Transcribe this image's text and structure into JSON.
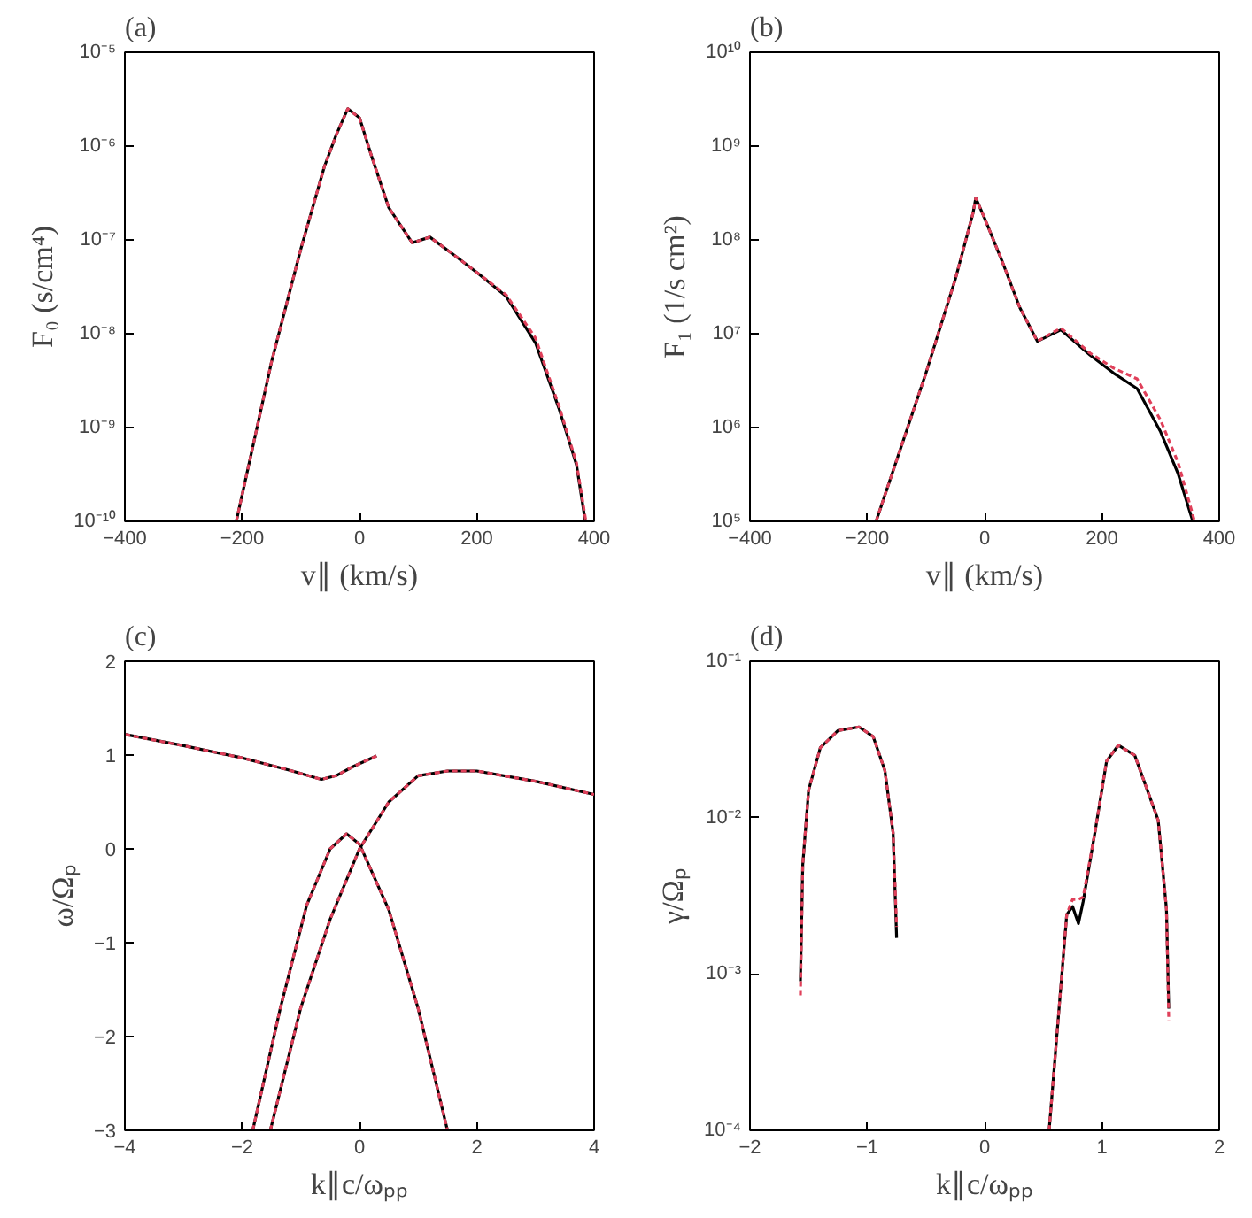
{
  "chart_data": [
    {
      "type": "line",
      "title": "(a)",
      "xlabel": "v∥ (km/s)",
      "ylabel": "F₀ (s/cm⁴)",
      "log": "y",
      "xlim": [
        -400,
        400
      ],
      "ylim": [
        1e-10,
        1e-05
      ],
      "xticks": [
        -400,
        -200,
        0,
        200,
        400
      ],
      "yticks": [
        {
          "value": 1e-10,
          "label": "10⁻¹⁰"
        },
        {
          "value": 1e-09,
          "label": "10⁻⁹"
        },
        {
          "value": 1e-08,
          "label": "10⁻⁸"
        },
        {
          "value": 1e-07,
          "label": "10⁻⁷"
        },
        {
          "value": 1e-06,
          "label": "10⁻⁶"
        },
        {
          "value": 1e-05,
          "label": "10⁻⁵"
        }
      ],
      "series": [
        {
          "color": "#000000",
          "line_style": "solid",
          "x": [
            -210,
            -150,
            -100,
            -60,
            -40,
            -20,
            0,
            20,
            50,
            90,
            120,
            160,
            200,
            250,
            300,
            340,
            370,
            385
          ],
          "values": [
            1e-10,
            5e-09,
            8e-08,
            6e-07,
            1.3e-06,
            2.5e-06,
            2e-06,
            8e-07,
            2.2e-07,
            9.3e-08,
            1.07e-07,
            7e-08,
            4.5e-08,
            2.5e-08,
            8e-09,
            1.6e-09,
            4e-10,
            1e-10
          ]
        },
        {
          "color": "#e0405a",
          "line_style": "dashed",
          "x": [
            -210,
            -150,
            -100,
            -60,
            -40,
            -20,
            0,
            20,
            50,
            90,
            120,
            160,
            200,
            250,
            300,
            340,
            370,
            386
          ],
          "values": [
            1e-10,
            5e-09,
            8e-08,
            6e-07,
            1.3e-06,
            2.5e-06,
            2e-06,
            8e-07,
            2.2e-07,
            9.3e-08,
            1.07e-07,
            7e-08,
            4.5e-08,
            2.6e-08,
            9e-09,
            1.7e-09,
            4.2e-10,
            1e-10
          ]
        }
      ]
    },
    {
      "type": "line",
      "title": "(b)",
      "xlabel": "v∥ (km/s)",
      "ylabel": "F₁ (1/s cm²)",
      "log": "y",
      "xlim": [
        -400,
        400
      ],
      "ylim": [
        100000.0,
        10000000000.0
      ],
      "xticks": [
        -400,
        -200,
        0,
        200,
        400
      ],
      "yticks": [
        {
          "value": 100000.0,
          "label": "10⁵"
        },
        {
          "value": 1000000.0,
          "label": "10⁶"
        },
        {
          "value": 10000000.0,
          "label": "10⁷"
        },
        {
          "value": 100000000.0,
          "label": "10⁸"
        },
        {
          "value": 1000000000.0,
          "label": "10⁹"
        },
        {
          "value": 10000000000.0,
          "label": "10¹⁰"
        }
      ],
      "series": [
        {
          "color": "#000000",
          "line_style": "solid",
          "x": [
            -185,
            -100,
            -50,
            -20,
            -15,
            0,
            30,
            60,
            90,
            130,
            180,
            220,
            260,
            300,
            330,
            355
          ],
          "values": [
            100000.0,
            3800000.0,
            38000000.0,
            190000000.0,
            280000000.0,
            170000000.0,
            59000000.0,
            19000000.0,
            8300000.0,
            11000000.0,
            5900000.0,
            3800000.0,
            2600000.0,
            900000.0,
            320000.0,
            100000.0
          ]
        },
        {
          "color": "#e0405a",
          "line_style": "dashed",
          "x": [
            -185,
            -100,
            -50,
            -20,
            -15,
            0,
            30,
            60,
            90,
            130,
            180,
            220,
            260,
            300,
            330,
            358
          ],
          "values": [
            100000.0,
            3800000.0,
            38000000.0,
            190000000.0,
            280000000.0,
            170000000.0,
            59000000.0,
            19000000.0,
            8300000.0,
            11500000.0,
            6200000.0,
            4300000.0,
            3300000.0,
            1200000.0,
            420000.0,
            100000.0
          ]
        }
      ]
    },
    {
      "type": "line",
      "title": "(c)",
      "xlabel": "k∥c/ωₚₚ",
      "ylabel": "ω/Ωₚ",
      "xlim": [
        -4,
        4
      ],
      "ylim": [
        -3,
        2
      ],
      "xticks": [
        -4,
        -2,
        0,
        2,
        4
      ],
      "yticks": [
        -3,
        -2,
        -1,
        0,
        1,
        2
      ],
      "series": [
        {
          "color": "#000000",
          "line_style": "solid",
          "x": [
            -4,
            -3,
            -2,
            -1.2,
            -0.65,
            -0.4,
            -0.1,
            0.29
          ],
          "values": [
            1.22,
            1.1,
            0.97,
            0.84,
            0.74,
            0.78,
            0.88,
            0.99
          ]
        },
        {
          "color": "#000000",
          "line_style": "solid",
          "x": [
            -1.52,
            -1,
            -0.5,
            0,
            0.5,
            1,
            1.5,
            2,
            3,
            4
          ],
          "values": [
            -3,
            -1.69,
            -0.75,
            0,
            0.5,
            0.78,
            0.83,
            0.83,
            0.72,
            0.58
          ]
        },
        {
          "color": "#000000",
          "line_style": "solid",
          "x": [
            -1.82,
            -1.35,
            -0.9,
            -0.5,
            -0.22,
            0,
            0.5,
            1,
            1.5
          ],
          "values": [
            -3,
            -1.7,
            -0.6,
            0,
            0.16,
            0.05,
            -0.65,
            -1.7,
            -3
          ]
        },
        {
          "color": "#e0405a",
          "line_style": "dashed",
          "x": [
            -4,
            -3,
            -2,
            -1.2,
            -0.65,
            -0.4,
            -0.1,
            0.29
          ],
          "values": [
            1.22,
            1.1,
            0.97,
            0.84,
            0.74,
            0.78,
            0.88,
            0.99
          ]
        },
        {
          "color": "#e0405a",
          "line_style": "dashed",
          "x": [
            -1.52,
            -1,
            -0.5,
            0,
            0.5,
            1,
            1.5,
            2,
            3,
            4
          ],
          "values": [
            -3,
            -1.69,
            -0.75,
            0,
            0.5,
            0.78,
            0.83,
            0.83,
            0.72,
            0.58
          ]
        },
        {
          "color": "#e0405a",
          "line_style": "dashed",
          "x": [
            -1.82,
            -1.35,
            -0.9,
            -0.5,
            -0.22,
            0,
            0.5,
            1,
            1.5
          ],
          "values": [
            -3,
            -1.7,
            -0.6,
            0,
            0.16,
            0.05,
            -0.65,
            -1.7,
            -3
          ]
        }
      ]
    },
    {
      "type": "line",
      "title": "(d)",
      "xlabel": "k∥c/ωₚₚ",
      "ylabel": "γ/Ωₚ",
      "log": "y",
      "xlim": [
        -2,
        2
      ],
      "ylim": [
        0.0001,
        0.1
      ],
      "xticks": [
        -2,
        -1,
        0,
        1,
        2
      ],
      "yticks": [
        {
          "value": 0.0001,
          "label": "10⁻⁴"
        },
        {
          "value": 0.001,
          "label": "10⁻³"
        },
        {
          "value": 0.01,
          "label": "10⁻²"
        },
        {
          "value": 0.1,
          "label": "10⁻¹"
        }
      ],
      "series": [
        {
          "color": "#000000",
          "line_style": "solid",
          "x": [
            -1.57,
            -1.55,
            -1.5,
            -1.4,
            -1.25,
            -1.07,
            -0.95,
            -0.85,
            -0.78,
            -0.75
          ],
          "values": [
            0.0009,
            0.005,
            0.015,
            0.028,
            0.036,
            0.038,
            0.033,
            0.02,
            0.008,
            0.0017
          ]
        },
        {
          "color": "#000000",
          "line_style": "solid",
          "x": [
            0.55,
            0.7,
            0.75,
            0.8,
            0.84,
            0.94,
            1.04,
            1.14,
            1.28,
            1.48,
            1.55,
            1.57
          ],
          "values": [
            0.0001,
            0.0024,
            0.0027,
            0.0021,
            0.0029,
            0.008,
            0.023,
            0.029,
            0.025,
            0.0096,
            0.0026,
            0.0006
          ]
        },
        {
          "color": "#e0405a",
          "line_style": "dashed",
          "x": [
            -1.57,
            -1.55,
            -1.5,
            -1.4,
            -1.25,
            -1.07,
            -0.95,
            -0.85,
            -0.78,
            -0.75
          ],
          "values": [
            0.00073,
            0.005,
            0.015,
            0.028,
            0.036,
            0.038,
            0.033,
            0.02,
            0.008,
            0.002
          ]
        },
        {
          "color": "#e0405a",
          "line_style": "dashed",
          "x": [
            0.55,
            0.7,
            0.75,
            0.8,
            0.84,
            0.94,
            1.04,
            1.14,
            1.28,
            1.48,
            1.55,
            1.57
          ],
          "values": [
            0.0001,
            0.0024,
            0.003,
            0.003,
            0.0031,
            0.008,
            0.023,
            0.029,
            0.025,
            0.0096,
            0.0026,
            0.0005
          ]
        }
      ]
    }
  ]
}
